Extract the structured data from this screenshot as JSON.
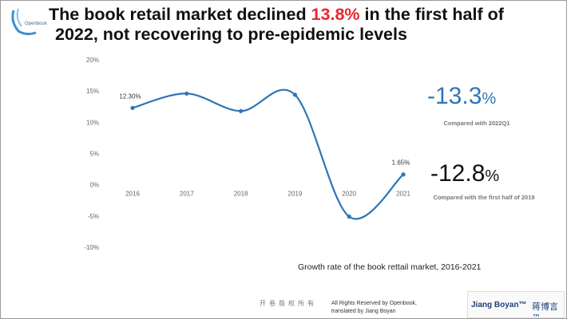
{
  "logo": {
    "label": "Openbook"
  },
  "title": {
    "prefix": "The book retail market declined ",
    "highlight": "13.8%",
    "suffix": " in the first half of",
    "line2": "2022, not recovering to pre-epidemic levels"
  },
  "chart_data": {
    "type": "line",
    "title": "Growth rate of the book rettail market, 2016-2021",
    "xlabel": "",
    "ylabel": "",
    "categories": [
      "2016",
      "2017",
      "2018",
      "2019",
      "2020",
      "2021"
    ],
    "series": [
      {
        "name": "Growth rate",
        "values": [
          12.3,
          14.6,
          11.8,
          14.4,
          -5.1,
          1.65
        ]
      }
    ],
    "data_labels": {
      "0": "12.30%",
      "5": "1.65%"
    },
    "ylim": [
      -10,
      20
    ],
    "yticks": [
      "-10%",
      "-5%",
      "0%",
      "5%",
      "10%",
      "15%",
      "20%"
    ],
    "grid": false,
    "line_color": "#2e75b6"
  },
  "callouts": [
    {
      "value": "-13.3",
      "unit": "%",
      "note": "Compared with 2022Q1"
    },
    {
      "value": "-12.8",
      "unit": "%",
      "note": "Compared with the first half of 2019"
    }
  ],
  "footer": {
    "chinese_rights": "开卷版权所有",
    "rights_line1": "All Rights Reserved by Openbook,",
    "rights_line2": "translated by Jiang Boyan",
    "brand_en": "Jiang Boyan™",
    "brand_cn": "蒋博言™"
  }
}
